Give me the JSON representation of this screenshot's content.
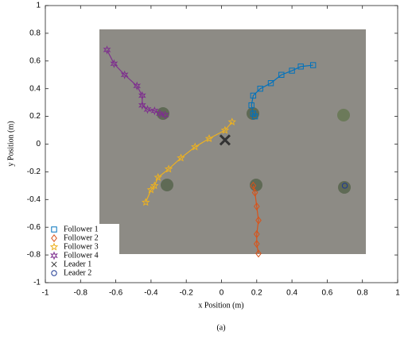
{
  "chart_data": {
    "type": "line",
    "xlabel": "x Position (m)",
    "ylabel": "y Position (m)",
    "caption": "(a)",
    "xlim": [
      -1,
      1
    ],
    "ylim": [
      -1,
      1
    ],
    "xticks": [
      -1,
      -0.8,
      -0.6,
      -0.4,
      -0.2,
      0,
      0.2,
      0.4,
      0.6,
      0.8,
      1
    ],
    "yticks": [
      -1,
      -0.8,
      -0.6,
      -0.4,
      -0.2,
      0,
      0.2,
      0.4,
      0.6,
      0.8,
      1
    ],
    "legend": "lower left",
    "series": [
      {
        "name": "Follower 1",
        "color": "#0072bd",
        "marker": "square",
        "x": [
          0.52,
          0.45,
          0.4,
          0.34,
          0.28,
          0.22,
          0.18,
          0.17,
          0.18,
          0.19
        ],
        "values": [
          0.57,
          0.56,
          0.53,
          0.5,
          0.44,
          0.4,
          0.35,
          0.28,
          0.22,
          0.2
        ]
      },
      {
        "name": "Follower 2",
        "color": "#d95319",
        "marker": "diamond",
        "x": [
          0.18,
          0.19,
          0.2,
          0.21,
          0.2,
          0.2,
          0.21
        ],
        "values": [
          -0.3,
          -0.35,
          -0.45,
          -0.55,
          -0.65,
          -0.72,
          -0.79
        ]
      },
      {
        "name": "Follower 3",
        "color": "#edb120",
        "marker": "star",
        "x": [
          0.06,
          0.02,
          -0.07,
          -0.15,
          -0.23,
          -0.3,
          -0.36,
          -0.38,
          -0.4,
          -0.43
        ],
        "values": [
          0.16,
          0.1,
          0.04,
          -0.02,
          -0.1,
          -0.18,
          -0.24,
          -0.3,
          -0.33,
          -0.42
        ]
      },
      {
        "name": "Follower 4",
        "color": "#7e2f8e",
        "marker": "hexagram",
        "x": [
          -0.65,
          -0.61,
          -0.55,
          -0.48,
          -0.45,
          -0.45,
          -0.42,
          -0.38,
          -0.35,
          -0.32
        ],
        "values": [
          0.68,
          0.58,
          0.5,
          0.42,
          0.35,
          0.28,
          0.25,
          0.24,
          0.22,
          0.21
        ]
      },
      {
        "name": "Leader 1",
        "color": "#333333",
        "marker": "x",
        "x": [
          0.02
        ],
        "values": [
          0.03
        ]
      },
      {
        "name": "Leader 2",
        "color": "#1f3a93",
        "marker": "circle",
        "x": [
          0.7
        ],
        "values": [
          -0.3
        ]
      }
    ]
  }
}
